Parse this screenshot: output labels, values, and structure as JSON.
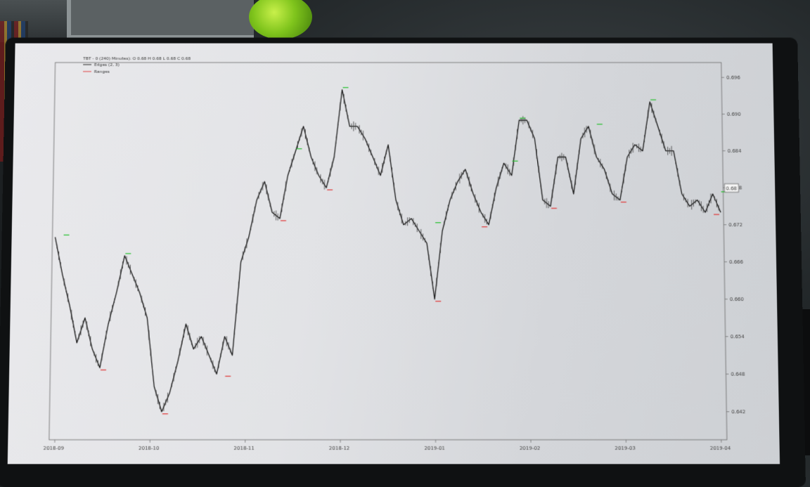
{
  "legend": {
    "header": "TBT - 0 (240) Minutes): O 0.68 H 0.68 L 0.68 C 0.68",
    "entries": [
      {
        "label": "Edges (2, 3)",
        "color": "#222222"
      },
      {
        "label": "Ranges",
        "color": "#e04040"
      }
    ]
  },
  "current_value_label": "0.68",
  "colors": {
    "line": "#1a1a1a",
    "peak_marker": "#22c02a",
    "trough_marker": "#e03535"
  },
  "chart_data": {
    "type": "line",
    "title": "",
    "xlabel": "",
    "ylabel": "",
    "ylim": [
      0.638,
      0.698
    ],
    "grid": false,
    "legend_placement": "top-left",
    "yaxis_side": "right",
    "x_ticks": [
      "2018-09",
      "2018-10",
      "2018-11",
      "2018-12",
      "2019-01",
      "2019-02",
      "2019-03",
      "2019-04"
    ],
    "y_ticks": [
      "0.642",
      "0.648",
      "0.654",
      "0.660",
      "0.666",
      "0.672",
      "0.678",
      "0.684",
      "0.690",
      "0.696"
    ],
    "series": [
      {
        "values": [
          0.67,
          0.664,
          0.659,
          0.653,
          0.657,
          0.652,
          0.649,
          0.656,
          0.661,
          0.667,
          0.664,
          0.661,
          0.657,
          0.646,
          0.642,
          0.645,
          0.65,
          0.656,
          0.652,
          0.654,
          0.651,
          0.648,
          0.654,
          0.651,
          0.666,
          0.67,
          0.676,
          0.679,
          0.674,
          0.673,
          0.68,
          0.684,
          0.688,
          0.683,
          0.68,
          0.678,
          0.683,
          0.694,
          0.688,
          0.688,
          0.686,
          0.683,
          0.68,
          0.685,
          0.676,
          0.672,
          0.673,
          0.671,
          0.669,
          0.66,
          0.671,
          0.676,
          0.679,
          0.681,
          0.677,
          0.674,
          0.672,
          0.678,
          0.682,
          0.68,
          0.689,
          0.689,
          0.686,
          0.676,
          0.675,
          0.683,
          0.683,
          0.677,
          0.686,
          0.688,
          0.683,
          0.681,
          0.677,
          0.676,
          0.683,
          0.685,
          0.684,
          0.692,
          0.688,
          0.684,
          0.684,
          0.677,
          0.675,
          0.676,
          0.674,
          0.677,
          0.674
        ]
      }
    ],
    "peaks": [
      {
        "x": 1,
        "value": 0.67
      },
      {
        "x": 9,
        "value": 0.667
      },
      {
        "x": 31,
        "value": 0.684
      },
      {
        "x": 37,
        "value": 0.694
      },
      {
        "x": 49,
        "value": 0.672
      },
      {
        "x": 59,
        "value": 0.682
      },
      {
        "x": 60,
        "value": 0.689
      },
      {
        "x": 70,
        "value": 0.688
      },
      {
        "x": 77,
        "value": 0.692
      },
      {
        "x": 86,
        "value": 0.677
      }
    ],
    "troughs": [
      {
        "x": 6,
        "value": 0.649
      },
      {
        "x": 14,
        "value": 0.642
      },
      {
        "x": 22,
        "value": 0.648
      },
      {
        "x": 29,
        "value": 0.673
      },
      {
        "x": 35,
        "value": 0.678
      },
      {
        "x": 49,
        "value": 0.66
      },
      {
        "x": 55,
        "value": 0.672
      },
      {
        "x": 64,
        "value": 0.675
      },
      {
        "x": 73,
        "value": 0.676
      },
      {
        "x": 85,
        "value": 0.674
      }
    ]
  }
}
